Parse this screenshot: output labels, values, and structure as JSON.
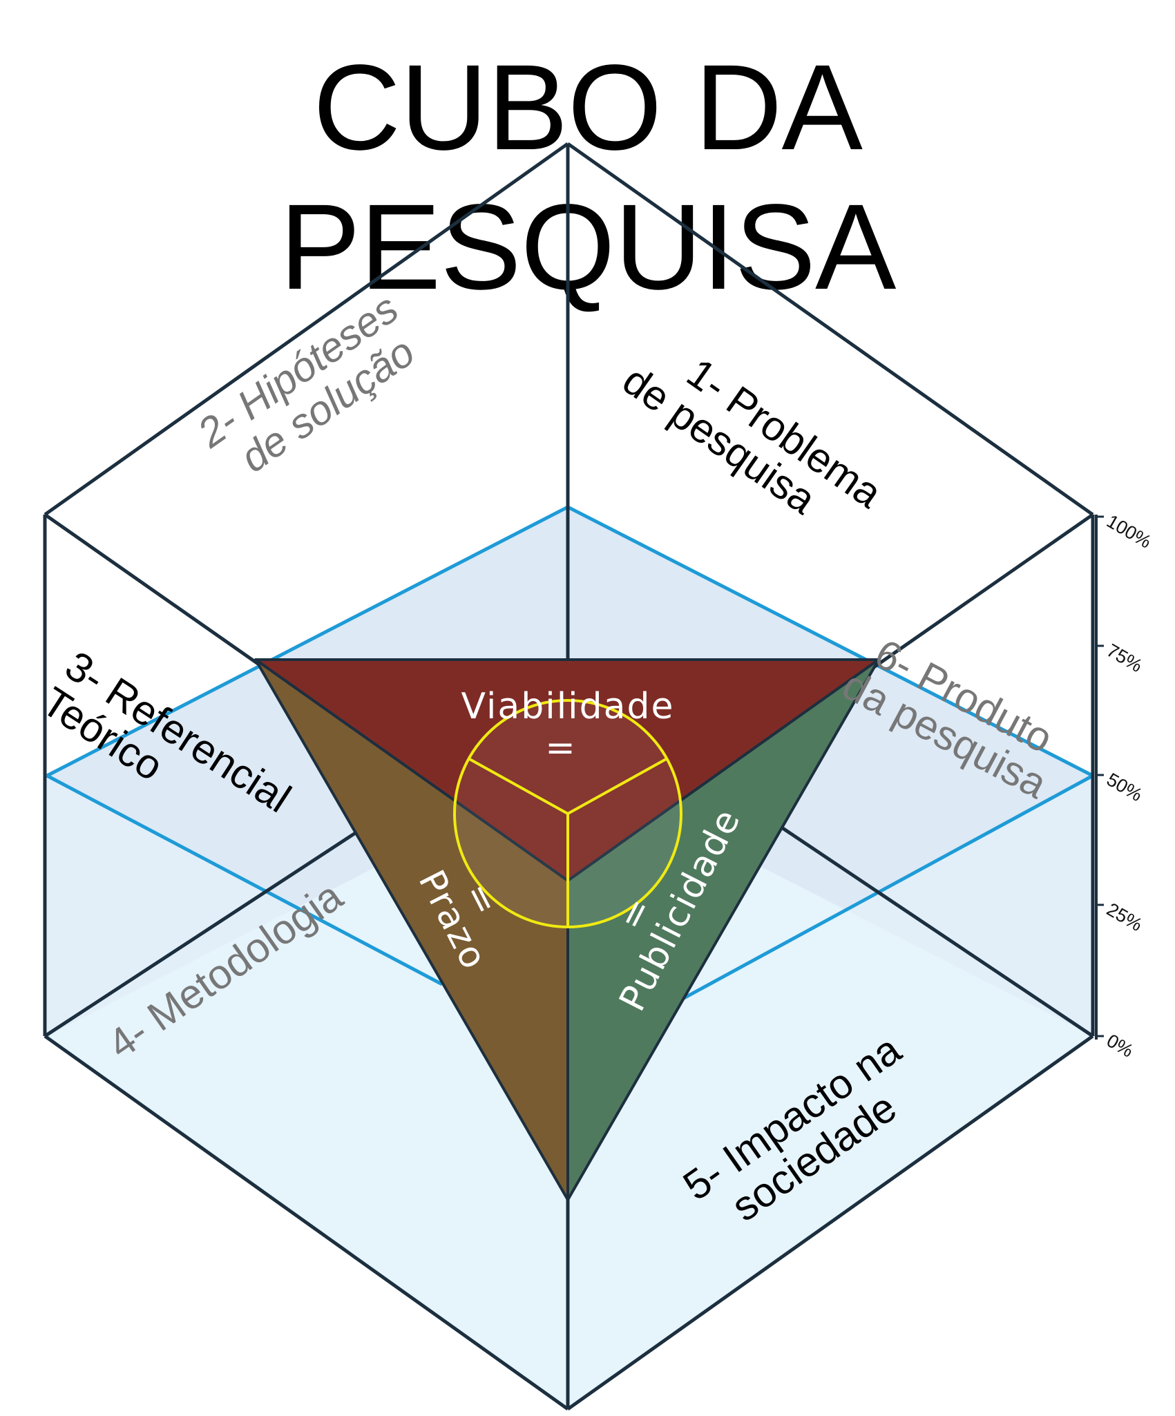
{
  "title": "CUBO DA PESQUISA",
  "faces": {
    "f1": {
      "line1": "1- Problema",
      "line2": "de pesquisa"
    },
    "f2": {
      "line1": "2- Hipóteses",
      "line2": "de solução"
    },
    "f3": {
      "line1": "3- Referencial",
      "line2": "Teórico"
    },
    "f4": {
      "line1": "4- Metodologia"
    },
    "f5": {
      "line1": "5- Impacto na",
      "line2": "sociedade"
    },
    "f6": {
      "line1": "6- Produto",
      "line2": "da pesquisa"
    }
  },
  "pyramid": {
    "top": {
      "label": "Viabilidade",
      "sign": "="
    },
    "left": {
      "label": "Prazo",
      "sign": "="
    },
    "right": {
      "label": "Publicidade",
      "sign": "="
    }
  },
  "scale": [
    "100%",
    "75%",
    "50%",
    "25%",
    "0%"
  ],
  "colors": {
    "edge": "#1c2f3f",
    "water_line": "#1e9bd7",
    "water_fill": "#dde9f5",
    "floor_fill": "#e6f4fc",
    "top_face": "#7e2b26",
    "left_face": "#7a5c32",
    "right_face": "#507a5e",
    "circle": "#f0ea12",
    "faint_text": "#777777"
  }
}
